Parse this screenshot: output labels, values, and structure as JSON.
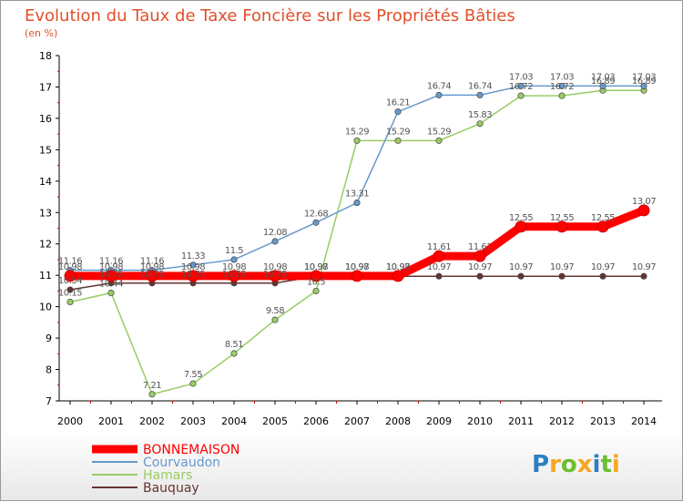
{
  "chart_data": {
    "type": "line",
    "title": "Evolution du Taux de Taxe Foncière sur les Propriétés Bâties",
    "subtitle": "(en %)",
    "x": [
      "2000",
      "2001",
      "2002",
      "2003",
      "2004",
      "2005",
      "2006",
      "2007",
      "2008",
      "2009",
      "2010",
      "2011",
      "2012",
      "2013",
      "2014"
    ],
    "ylim": [
      7,
      18
    ],
    "yticks": [
      "7",
      "8",
      "9",
      "10",
      "11",
      "12",
      "13",
      "14",
      "15",
      "16",
      "17",
      "18"
    ],
    "series": [
      {
        "name": "BONNEMAISON",
        "color": "#ff0000",
        "values": [
          10.98,
          10.98,
          10.98,
          10.98,
          10.98,
          10.98,
          10.98,
          10.98,
          10.98,
          11.61,
          11.61,
          12.55,
          12.55,
          12.55,
          13.07
        ],
        "labels": [
          "10.98",
          "10.98",
          "10.98",
          "10.98",
          "10.98",
          "10.98",
          "10.98",
          "10.98",
          "10.98",
          "11.61",
          "11.61",
          "12.55",
          "12.55",
          "12.55",
          "13.07"
        ]
      },
      {
        "name": "Courvaudon",
        "color": "#6699cc",
        "values": [
          11.16,
          11.16,
          11.16,
          11.33,
          11.5,
          12.08,
          12.68,
          13.31,
          16.21,
          16.74,
          16.74,
          17.03,
          17.03,
          17.03,
          17.03
        ],
        "labels": [
          "11.16",
          "11.16",
          "11.16",
          "11.33",
          "11.5",
          "12.08",
          "12.68",
          "13.31",
          "16.21",
          "16.74",
          "16.74",
          "17.03",
          "17.03",
          "17.03",
          "17.03"
        ]
      },
      {
        "name": "Hamars",
        "color": "#99cc66",
        "values": [
          10.15,
          10.44,
          7.21,
          7.55,
          8.51,
          9.58,
          10.5,
          15.29,
          15.29,
          15.29,
          15.83,
          16.72,
          16.72,
          16.89,
          16.89
        ],
        "labels": [
          "10.15",
          "10.44",
          "7.21",
          "7.55",
          "8.51",
          "9.58",
          "10.5",
          "15.29",
          "15.29",
          "15.29",
          "15.83",
          "16.72",
          "16.72",
          "16.89",
          "16.89"
        ]
      },
      {
        "name": "Bauquay",
        "color": "#663333",
        "values": [
          10.54,
          10.75,
          10.75,
          10.75,
          10.75,
          10.75,
          10.97,
          10.97,
          10.97,
          10.97,
          10.97,
          10.97,
          10.97,
          10.97,
          10.97
        ],
        "labels": [
          "10.54",
          "10.75",
          "10.75",
          "10.75",
          "10.75",
          "10.75",
          "10.97",
          "10.97",
          "10.97",
          "10.97",
          "10.97",
          "10.97",
          "10.97",
          "10.97",
          "10.97"
        ]
      }
    ],
    "legend": {
      "position": "bottom-left"
    },
    "grid": false
  },
  "brand": {
    "letters": [
      "P",
      "r",
      "o",
      "x",
      "i",
      "t",
      "i"
    ],
    "colors": [
      "#2e7fc1",
      "#f5a623",
      "#6abf2e",
      "#f5a623",
      "#2e7fc1",
      "#6abf2e",
      "#f5a623"
    ]
  }
}
